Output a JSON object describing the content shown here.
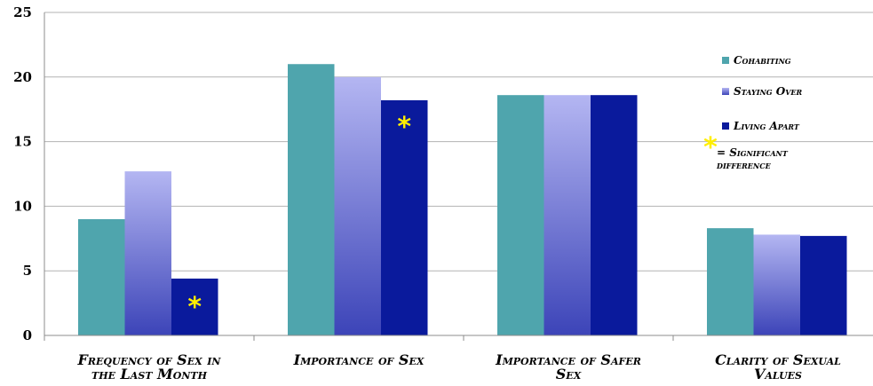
{
  "chart_data": {
    "type": "bar",
    "categories": [
      [
        "Frequency of Sex in",
        "the Last Month"
      ],
      [
        "Importance of Sex"
      ],
      [
        "Importance of Safer",
        "Sex"
      ],
      [
        "Clarity of Sexual",
        "Values"
      ]
    ],
    "series": [
      {
        "name": "Cohabiting",
        "values": [
          9.0,
          21.0,
          18.6,
          8.3
        ],
        "color": "#4fa5ad"
      },
      {
        "name": "Staying Over",
        "values": [
          12.7,
          20.0,
          18.6,
          7.8
        ],
        "color_top": "#b4b6f2",
        "color_bottom": "#3c44b8"
      },
      {
        "name": "Living Apart",
        "values": [
          4.4,
          18.2,
          18.6,
          7.7
        ],
        "color": "#0a1a9c"
      }
    ],
    "yticks": [
      0,
      5,
      10,
      15,
      20,
      25
    ],
    "ylim": [
      0,
      25
    ],
    "grid": true,
    "legend_position": "right",
    "significance_marks": [
      {
        "category_index": 0,
        "series_index": 2,
        "symbol": "*"
      },
      {
        "category_index": 1,
        "series_index": 2,
        "symbol": "*"
      }
    ],
    "significance_legend": {
      "symbol": "*",
      "lines": [
        "= Significant",
        "difference"
      ]
    },
    "star_color": "#ffee00"
  }
}
